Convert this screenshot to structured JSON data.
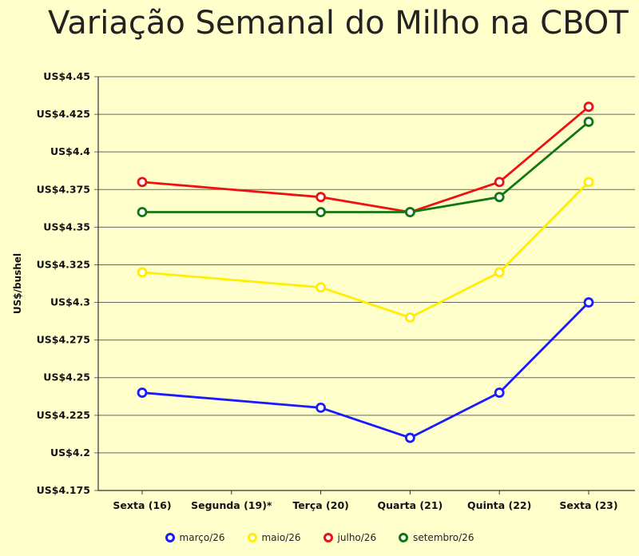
{
  "chart_data": {
    "type": "line",
    "title": "Variação Semanal do Milho na CBOT",
    "ylabel": "US$/bushel",
    "xlabel": "",
    "categories": [
      "Sexta (16)",
      "Segunda (19)*",
      "Terça (20)",
      "Quarta (21)",
      "Quinta (22)",
      "Sexta (23)"
    ],
    "y_ticks": [
      "US$4.175",
      "US$4.2",
      "US$4.225",
      "US$4.25",
      "US$4.275",
      "US$4.3",
      "US$4.325",
      "US$4.35",
      "US$4.375",
      "US$4.4",
      "US$4.425",
      "US$4.45"
    ],
    "ylim": [
      4.175,
      4.45
    ],
    "grid": true,
    "legend_position": "bottom",
    "series": [
      {
        "name": "março/26",
        "color": "#1a1aff",
        "values": [
          4.24,
          null,
          4.23,
          4.21,
          4.24,
          4.3
        ]
      },
      {
        "name": "maio/26",
        "color": "#ffee00",
        "values": [
          4.32,
          null,
          4.31,
          4.29,
          4.32,
          4.38
        ]
      },
      {
        "name": "julho/26",
        "color": "#ee1111",
        "values": [
          4.38,
          null,
          4.37,
          4.36,
          4.38,
          4.43
        ]
      },
      {
        "name": "setembro/26",
        "color": "#117711",
        "values": [
          4.36,
          null,
          4.36,
          4.36,
          4.37,
          4.42
        ]
      }
    ]
  }
}
